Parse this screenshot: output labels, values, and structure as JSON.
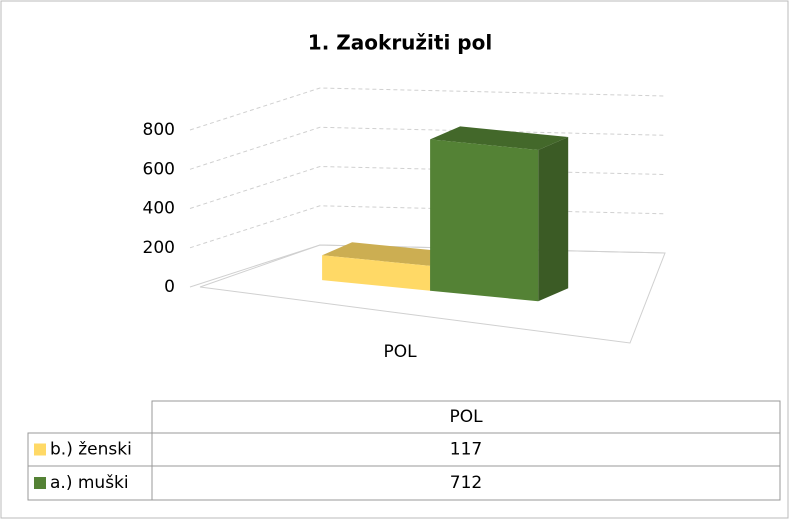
{
  "chart_data": {
    "type": "bar3d",
    "title": "1. Zaokružiti pol",
    "categories": [
      "POL"
    ],
    "series": [
      {
        "name": "b.) ženski",
        "color": "#ffd966",
        "values": [
          117
        ]
      },
      {
        "name": "a.) muški",
        "color": "#548235",
        "values": [
          712
        ]
      }
    ],
    "ylim": [
      0,
      800
    ],
    "yticks": [
      0,
      200,
      400,
      600,
      800
    ],
    "grid": true,
    "data_table": true
  }
}
